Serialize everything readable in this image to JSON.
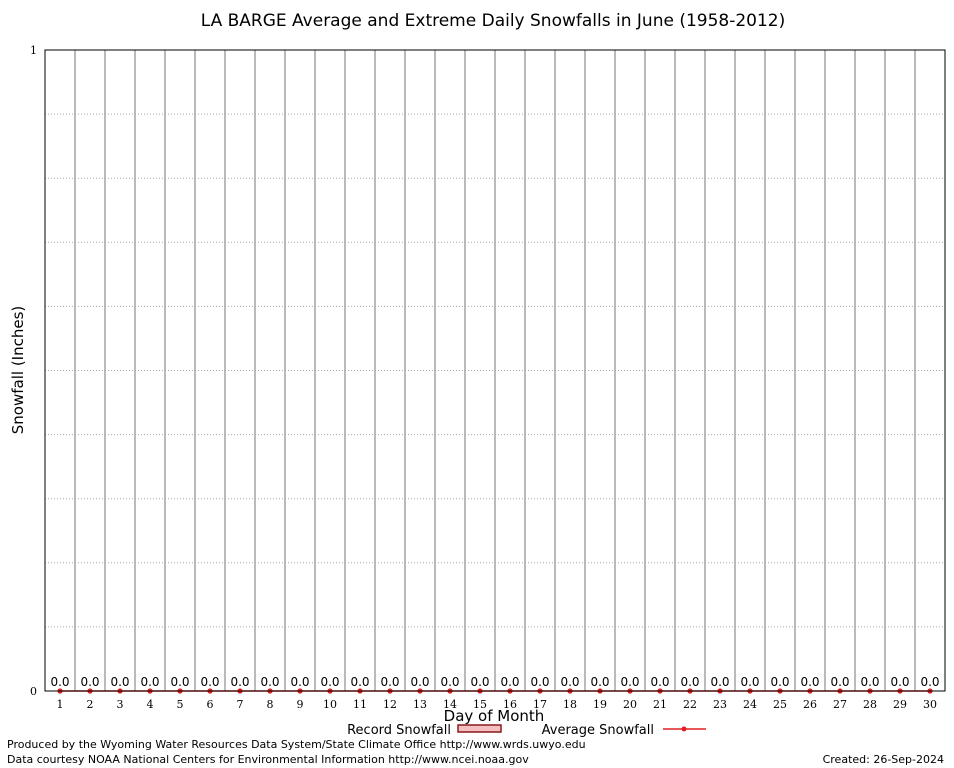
{
  "chart_data": {
    "type": "bar",
    "title": "LA BARGE Average and Extreme Daily Snowfalls in June (1958-2012)",
    "xlabel": "Day of Month",
    "ylabel": "Snowfall (Inches)",
    "ylim": [
      0,
      1
    ],
    "y_tick_labels": [
      "0",
      "1"
    ],
    "categories": [
      "1",
      "2",
      "3",
      "4",
      "5",
      "6",
      "7",
      "8",
      "9",
      "10",
      "11",
      "12",
      "13",
      "14",
      "15",
      "16",
      "17",
      "18",
      "19",
      "20",
      "21",
      "22",
      "23",
      "24",
      "25",
      "26",
      "27",
      "28",
      "29",
      "30"
    ],
    "value_labels": [
      "0.0",
      "0.0",
      "0.0",
      "0.0",
      "0.0",
      "0.0",
      "0.0",
      "0.0",
      "0.0",
      "0.0",
      "0.0",
      "0.0",
      "0.0",
      "0.0",
      "0.0",
      "0.0",
      "0.0",
      "0.0",
      "0.0",
      "0.0",
      "0.0",
      "0.0",
      "0.0",
      "0.0",
      "0.0",
      "0.0",
      "0.0",
      "0.0",
      "0.0",
      "0.0"
    ],
    "series": [
      {
        "name": "Record Snowfall",
        "type": "bar",
        "color": "#8b1a1a",
        "values": [
          0,
          0,
          0,
          0,
          0,
          0,
          0,
          0,
          0,
          0,
          0,
          0,
          0,
          0,
          0,
          0,
          0,
          0,
          0,
          0,
          0,
          0,
          0,
          0,
          0,
          0,
          0,
          0,
          0,
          0
        ]
      },
      {
        "name": "Average Snowfall",
        "type": "line",
        "color": "#e02020",
        "values": [
          0,
          0,
          0,
          0,
          0,
          0,
          0,
          0,
          0,
          0,
          0,
          0,
          0,
          0,
          0,
          0,
          0,
          0,
          0,
          0,
          0,
          0,
          0,
          0,
          0,
          0,
          0,
          0,
          0,
          0
        ]
      }
    ],
    "grid": true,
    "legend": "bottom-center"
  },
  "footer": {
    "line1": "Produced by the Wyoming Water Resources Data System/State Climate Office http://www.wrds.uwyo.edu",
    "line2": "Data courtesy NOAA National Centers for Environmental Information http://www.ncei.noaa.gov",
    "created": "Created:  26-Sep-2024"
  }
}
